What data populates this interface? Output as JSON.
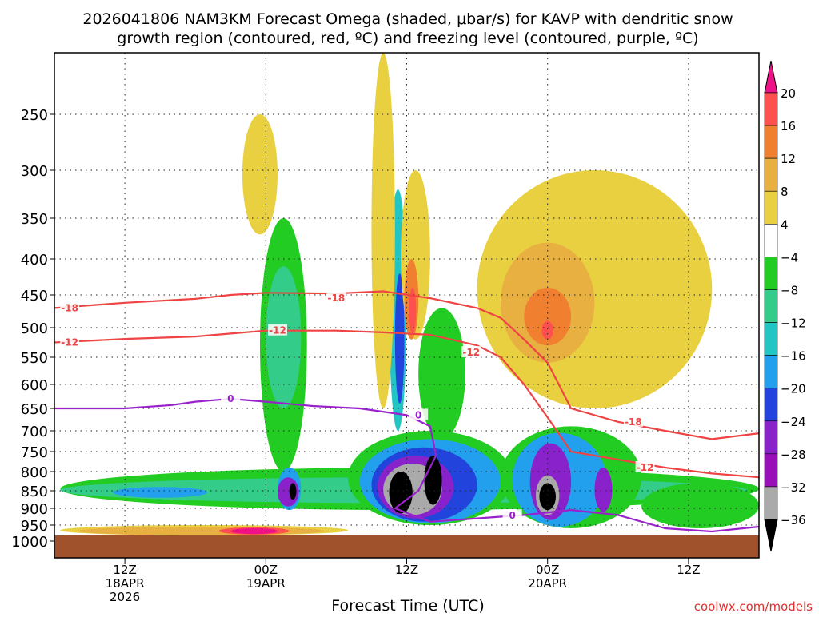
{
  "chart_data": {
    "type": "heatmap",
    "title_line1": "2026041806 NAM3KM Forecast Omega (shaded, μbar/s) for KAVP with dendritic snow",
    "title_line2": "growth region (contoured, red, ºC) and freezing level (contoured, purple, ºC)",
    "xlabel": "Forecast Time (UTC)",
    "credit": "coolwx.com/models",
    "x_range_hours": [
      0,
      60
    ],
    "y_range_hpa": [
      1000,
      200
    ],
    "y_ticks": [
      "250",
      "300",
      "350",
      "400",
      "450",
      "500",
      "550",
      "600",
      "650",
      "700",
      "750",
      "800",
      "850",
      "900",
      "950",
      "1000"
    ],
    "y_tick_values": [
      250,
      300,
      350,
      400,
      450,
      500,
      550,
      600,
      650,
      700,
      750,
      800,
      850,
      900,
      950,
      1000
    ],
    "x_ticks": [
      {
        "hour": 6,
        "label": "12Z",
        "sub": "18APR",
        "sub2": "2026"
      },
      {
        "hour": 18,
        "label": "00Z",
        "sub": "19APR",
        "sub2": ""
      },
      {
        "hour": 30,
        "label": "12Z",
        "sub": "",
        "sub2": ""
      },
      {
        "hour": 42,
        "label": "00Z",
        "sub": "20APR",
        "sub2": ""
      },
      {
        "hour": 54,
        "label": "12Z",
        "sub": "",
        "sub2": ""
      }
    ],
    "colorbar": {
      "labels": [
        "20",
        "16",
        "12",
        "8",
        "4",
        "−4",
        "−8",
        "−12",
        "−16",
        "−20",
        "−24",
        "−28",
        "−32",
        "−36"
      ],
      "colors": [
        "#ff5050",
        "#f08030",
        "#e8b040",
        "#e8d040",
        "#ffffff",
        "#22cc22",
        "#33cc88",
        "#22c4c4",
        "#22a0ee",
        "#2244dd",
        "#8a22cc",
        "#9a10b8",
        "#aaaaaa"
      ],
      "top_color": "#ee1188",
      "bottom_color": "#000000"
    },
    "contour_labels": {
      "dgz_upper": "-18",
      "dgz_lower": "-12",
      "freezing": "0"
    },
    "series": [
      {
        "name": "-18C isotherm",
        "color": "#ee4444",
        "points": [
          [
            0,
            470
          ],
          [
            6,
            462
          ],
          [
            12,
            456
          ],
          [
            15,
            450
          ],
          [
            18,
            447
          ],
          [
            24,
            448
          ],
          [
            28,
            445
          ],
          [
            32,
            455
          ],
          [
            36,
            470
          ],
          [
            38,
            485
          ],
          [
            40,
            520
          ],
          [
            42,
            560
          ],
          [
            44,
            650
          ],
          [
            48,
            680
          ],
          [
            52,
            700
          ],
          [
            56,
            720
          ],
          [
            60,
            706
          ]
        ]
      },
      {
        "name": "-12C isotherm",
        "color": "#ee4444",
        "points": [
          [
            0,
            525
          ],
          [
            6,
            519
          ],
          [
            12,
            515
          ],
          [
            15,
            510
          ],
          [
            18,
            505
          ],
          [
            24,
            505
          ],
          [
            28,
            508
          ],
          [
            32,
            512
          ],
          [
            36,
            530
          ],
          [
            38,
            550
          ],
          [
            40,
            600
          ],
          [
            42,
            670
          ],
          [
            44,
            750
          ],
          [
            48,
            770
          ],
          [
            52,
            790
          ],
          [
            56,
            805
          ],
          [
            60,
            815
          ]
        ]
      },
      {
        "name": "0C freezing level",
        "color": "#9922cc",
        "points": [
          [
            0,
            650
          ],
          [
            6,
            650
          ],
          [
            10,
            643
          ],
          [
            12,
            636
          ],
          [
            15,
            630
          ],
          [
            18,
            636
          ],
          [
            22,
            645
          ],
          [
            26,
            650
          ],
          [
            30,
            665
          ],
          [
            32,
            690
          ],
          [
            32.5,
            760
          ],
          [
            31,
            850
          ],
          [
            29,
            900
          ],
          [
            32,
            940
          ],
          [
            36,
            930
          ],
          [
            40,
            920
          ],
          [
            44,
            905
          ],
          [
            48,
            920
          ],
          [
            52,
            960
          ],
          [
            56,
            970
          ],
          [
            60,
            955
          ]
        ]
      }
    ],
    "regions": [
      {
        "level": "-8",
        "color": "#22cc22",
        "h0": 0.5,
        "h1": 60,
        "p_top": 790,
        "p_bot": 905
      },
      {
        "level": "-12",
        "color": "#33cc88",
        "h0": 0.5,
        "h1": 59,
        "p_top": 815,
        "p_bot": 885
      },
      {
        "level": "-16",
        "color": "#22a0ee",
        "h0": 5,
        "h1": 13,
        "p_top": 840,
        "p_bot": 870
      },
      {
        "level": "-8",
        "color": "#22cc22",
        "h0": 17.5,
        "h1": 21.5,
        "p_top": 350,
        "p_bot": 800
      },
      {
        "level": "-12",
        "color": "#33cc88",
        "h0": 18,
        "h1": 21,
        "p_top": 410,
        "p_bot": 650
      },
      {
        "level": "-16",
        "color": "#22a0ee",
        "h0": 19,
        "h1": 21,
        "p_top": 790,
        "p_bot": 905
      },
      {
        "level": "-24",
        "color": "#8a22cc",
        "h0": 19,
        "h1": 20.8,
        "p_top": 815,
        "p_bot": 895
      },
      {
        "level": "-36",
        "color": "#000000",
        "h0": 20,
        "h1": 20.6,
        "p_top": 830,
        "p_bot": 875
      },
      {
        "level": "-8",
        "color": "#22cc22",
        "h0": 25,
        "h1": 39,
        "p_top": 700,
        "p_bot": 950
      },
      {
        "level": "-16",
        "color": "#22a0ee",
        "h0": 26,
        "h1": 38,
        "p_top": 720,
        "p_bot": 945
      },
      {
        "level": "-24",
        "color": "#2244dd",
        "h0": 27,
        "h1": 36,
        "p_top": 740,
        "p_bot": 940
      },
      {
        "level": "-28",
        "color": "#8a22cc",
        "h0": 27.5,
        "h1": 34,
        "p_top": 760,
        "p_bot": 930
      },
      {
        "level": "-32",
        "color": "#aaaaaa",
        "h0": 28,
        "h1": 33,
        "p_top": 780,
        "p_bot": 920
      },
      {
        "level": "-36",
        "color": "#000000",
        "h0": 28.5,
        "h1": 30.5,
        "p_top": 800,
        "p_bot": 915
      },
      {
        "level": "-36",
        "color": "#000000",
        "h0": 31.5,
        "h1": 33,
        "p_top": 760,
        "p_bot": 890
      },
      {
        "level": "-12",
        "color": "#22c4c4",
        "h0": 28.5,
        "h1": 30,
        "p_top": 320,
        "p_bot": 700
      },
      {
        "level": "-20",
        "color": "#2244dd",
        "h0": 29,
        "h1": 29.8,
        "p_top": 420,
        "p_bot": 640
      },
      {
        "level": "-8",
        "color": "#22cc22",
        "h0": 31,
        "h1": 35,
        "p_top": 470,
        "p_bot": 720
      },
      {
        "level": "-8",
        "color": "#22cc22",
        "h0": 38,
        "h1": 50,
        "p_top": 690,
        "p_bot": 960
      },
      {
        "level": "-16",
        "color": "#22a0ee",
        "h0": 39,
        "h1": 47,
        "p_top": 705,
        "p_bot": 955
      },
      {
        "level": "-24",
        "color": "#8a22cc",
        "h0": 40.5,
        "h1": 44,
        "p_top": 730,
        "p_bot": 935
      },
      {
        "level": "-32",
        "color": "#aaaaaa",
        "h0": 41,
        "h1": 43,
        "p_top": 810,
        "p_bot": 920
      },
      {
        "level": "-36",
        "color": "#000000",
        "h0": 41.3,
        "h1": 42.7,
        "p_top": 830,
        "p_bot": 905
      },
      {
        "level": "-28",
        "color": "#8a22cc",
        "h0": 46,
        "h1": 47.5,
        "p_top": 790,
        "p_bot": 910
      },
      {
        "level": "-8",
        "color": "#22cc22",
        "h0": 50,
        "h1": 60,
        "p_top": 830,
        "p_bot": 960
      },
      {
        "level": "4",
        "color": "#e8d040",
        "h0": 16,
        "h1": 19,
        "p_top": 250,
        "p_bot": 370
      },
      {
        "level": "4",
        "color": "#e8d040",
        "h0": 27,
        "h1": 29,
        "p_top": 200,
        "p_bot": 650
      },
      {
        "level": "4",
        "color": "#e8d040",
        "h0": 29.5,
        "h1": 32,
        "p_top": 300,
        "p_bot": 520
      },
      {
        "level": "12",
        "color": "#f08030",
        "h0": 29.8,
        "h1": 31,
        "p_top": 400,
        "p_bot": 520
      },
      {
        "level": "16",
        "color": "#ff5050",
        "h0": 30.2,
        "h1": 30.8,
        "p_top": 440,
        "p_bot": 510
      },
      {
        "level": "4",
        "color": "#e8d040",
        "h0": 36,
        "h1": 56,
        "p_top": 300,
        "p_bot": 650
      },
      {
        "level": "8",
        "color": "#e8b040",
        "h0": 38,
        "h1": 46,
        "p_top": 380,
        "p_bot": 560
      },
      {
        "level": "12",
        "color": "#f08030",
        "h0": 40,
        "h1": 44,
        "p_top": 440,
        "p_bot": 530
      },
      {
        "level": "16",
        "color": "#ff5050",
        "h0": 41.5,
        "h1": 42.5,
        "p_top": 490,
        "p_bot": 520
      },
      {
        "level": "4",
        "color": "#e8d040",
        "h0": 0.5,
        "h1": 25,
        "p_top": 950,
        "p_bot": 985
      },
      {
        "level": "8",
        "color": "#e8b040",
        "h0": 2,
        "h1": 23,
        "p_top": 955,
        "p_bot": 982
      },
      {
        "level": "16",
        "color": "#ff5050",
        "h0": 14,
        "h1": 20,
        "p_top": 957,
        "p_bot": 980
      },
      {
        "level": "20",
        "color": "#ee1188",
        "h0": 15,
        "h1": 19,
        "p_top": 960,
        "p_bot": 978
      }
    ]
  }
}
